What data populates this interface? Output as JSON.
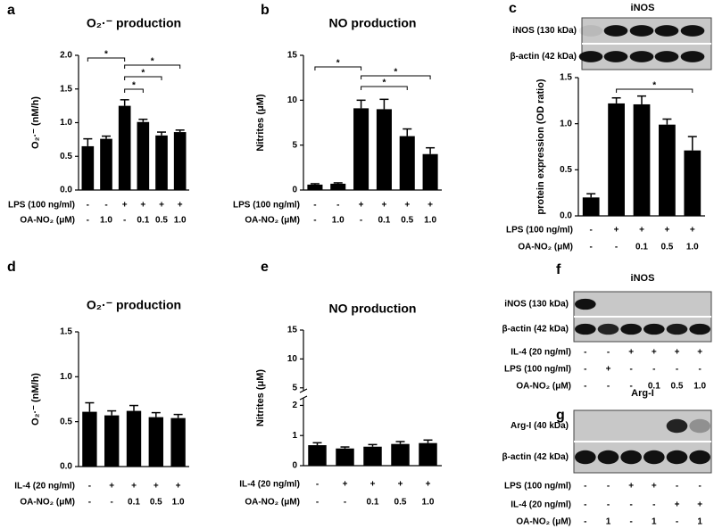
{
  "chart_data": [
    {
      "type": "bar",
      "panel": "a",
      "title": "O₂·⁻ production",
      "ylabel": "O₂·⁻ (nM/h)",
      "color": "#000000",
      "values": [
        0.65,
        0.76,
        1.25,
        1.01,
        0.81,
        0.86
      ],
      "errors": [
        0.11,
        0.04,
        0.09,
        0.04,
        0.05,
        0.03
      ],
      "ylim": [
        0,
        2.0
      ],
      "yticks": [
        {
          "value": 0,
          "label": "0.0"
        },
        {
          "value": 0.5,
          "label": "0.5"
        },
        {
          "value": 1.0,
          "label": "1.0"
        },
        {
          "value": 1.5,
          "label": "1.5"
        },
        {
          "value": 2.0,
          "label": "2.0"
        }
      ],
      "significance": [
        {
          "from": 0,
          "to": 2,
          "label": "*"
        },
        {
          "from": 2,
          "to": 3,
          "label": "*"
        },
        {
          "from": 2,
          "to": 4,
          "label": "*"
        },
        {
          "from": 2,
          "to": 5,
          "label": "*"
        }
      ],
      "conditions": [
        {
          "label": "LPS (100 ng/ml)",
          "values": [
            "-",
            "-",
            "+",
            "+",
            "+",
            "+"
          ]
        },
        {
          "label": "OA-NO₂ (μM)",
          "values": [
            "-",
            "1.0",
            "-",
            "0.1",
            "0.5",
            "1.0"
          ]
        }
      ]
    },
    {
      "type": "bar",
      "panel": "b",
      "title": "NO production",
      "ylabel": "Nitrites (μM)",
      "color": "#000000",
      "values": [
        0.6,
        0.7,
        9.1,
        9.0,
        6.0,
        4.0
      ],
      "errors": [
        0.1,
        0.1,
        0.9,
        1.1,
        0.8,
        0.7
      ],
      "ylim": [
        0,
        15
      ],
      "yticks": [
        0,
        5,
        10,
        15
      ],
      "significance": [
        {
          "from": 0,
          "to": 2,
          "label": "*"
        },
        {
          "from": 2,
          "to": 4,
          "label": "*"
        },
        {
          "from": 2,
          "to": 5,
          "label": "*"
        }
      ],
      "conditions": [
        {
          "label": "LPS (100 ng/ml)",
          "values": [
            "-",
            "-",
            "+",
            "+",
            "+",
            "+"
          ]
        },
        {
          "label": "OA-NO₂ (μM)",
          "values": [
            "-",
            "1.0",
            "-",
            "0.1",
            "0.5",
            "1.0"
          ]
        }
      ]
    },
    {
      "type": "bar",
      "panel": "c",
      "ylabel": "protein expression (OD ratio)",
      "color": "#000000",
      "values": [
        0.2,
        1.22,
        1.21,
        0.99,
        0.71
      ],
      "errors": [
        0.04,
        0.06,
        0.09,
        0.06,
        0.15
      ],
      "ylim": [
        0,
        1.5
      ],
      "yticks": [
        {
          "value": 0,
          "label": "0.0"
        },
        {
          "value": 0.5,
          "label": "0.5"
        },
        {
          "value": 1.0,
          "label": "1.0"
        },
        {
          "value": 1.5,
          "label": "1.5"
        }
      ],
      "significance": [
        {
          "from": 1,
          "to": 4,
          "label": "*"
        }
      ],
      "conditions": [
        {
          "label": "LPS (100 ng/ml)",
          "values": [
            "-",
            "+",
            "+",
            "+",
            "+"
          ]
        },
        {
          "label": "OA-NO₂ (μM)",
          "values": [
            "-",
            "-",
            "0.1",
            "0.5",
            "1.0"
          ]
        }
      ]
    },
    {
      "type": "bar",
      "panel": "d",
      "title": "O₂·⁻ production",
      "ylabel": "O₂·⁻ (nM/h)",
      "color": "#000000",
      "values": [
        0.61,
        0.57,
        0.62,
        0.55,
        0.54
      ],
      "errors": [
        0.1,
        0.05,
        0.06,
        0.05,
        0.04
      ],
      "ylim": [
        0,
        1.5
      ],
      "yticks": [
        {
          "value": 0,
          "label": "0.0"
        },
        {
          "value": 0.5,
          "label": "0.5"
        },
        {
          "value": 1.0,
          "label": "1.0"
        },
        {
          "value": 1.5,
          "label": "1.5"
        }
      ],
      "conditions": [
        {
          "label": "IL-4 (20 ng/ml)",
          "values": [
            "-",
            "+",
            "+",
            "+",
            "+"
          ]
        },
        {
          "label": "OA-NO₂ (μM)",
          "values": [
            "-",
            "-",
            "0.1",
            "0.5",
            "1.0"
          ]
        }
      ]
    },
    {
      "type": "bar",
      "panel": "e",
      "title": "NO production",
      "ylabel": "Nitrites (μM)",
      "color": "#000000",
      "values": [
        0.68,
        0.57,
        0.63,
        0.72,
        0.75
      ],
      "errors": [
        0.08,
        0.05,
        0.07,
        0.08,
        0.1
      ],
      "ylim": [
        0,
        15
      ],
      "yticks": [
        0,
        1,
        2,
        5,
        10,
        15
      ],
      "axis_break": [
        2.25,
        4.5
      ],
      "conditions": [
        {
          "label": "IL-4 (20 ng/ml)",
          "values": [
            "-",
            "+",
            "+",
            "+",
            "+"
          ]
        },
        {
          "label": "OA-NO₂ (μM)",
          "values": [
            "-",
            "-",
            "0.1",
            "0.5",
            "1.0"
          ]
        }
      ]
    }
  ],
  "blots": [
    {
      "title": "iNOS",
      "rows": [
        "iNOS (130 kDa)",
        "β-actin (42 kDa)"
      ]
    },
    {
      "panel": "f",
      "title": "iNOS",
      "rows": [
        "iNOS (130 kDa)",
        "β-actin (42 kDa)"
      ],
      "conditions": [
        {
          "label": "IL-4 (20 ng/ml)",
          "values": [
            "-",
            "-",
            "+",
            "+",
            "+",
            "+"
          ]
        },
        {
          "label": "LPS (100 ng/ml)",
          "values": [
            "-",
            "+",
            "-",
            "-",
            "-",
            "-"
          ]
        },
        {
          "label": "OA-NO₂ (μM)",
          "values": [
            "-",
            "-",
            "-",
            "0.1",
            "0.5",
            "1.0"
          ]
        }
      ]
    },
    {
      "panel": "g",
      "title": "Arg-I",
      "rows": [
        "Arg-I (40 kDa)",
        "β-actin (42 kDa)"
      ],
      "conditions": [
        {
          "label": "LPS (100 ng/ml)",
          "values": [
            "-",
            "-",
            "+",
            "+",
            "-",
            "-"
          ]
        },
        {
          "label": "IL-4 (20 ng/ml)",
          "values": [
            "-",
            "-",
            "-",
            "-",
            "+",
            "+"
          ]
        },
        {
          "label": "OA-NO₂ (μM)",
          "values": [
            "-",
            "1",
            "-",
            "1",
            "-",
            "1"
          ]
        }
      ]
    }
  ]
}
